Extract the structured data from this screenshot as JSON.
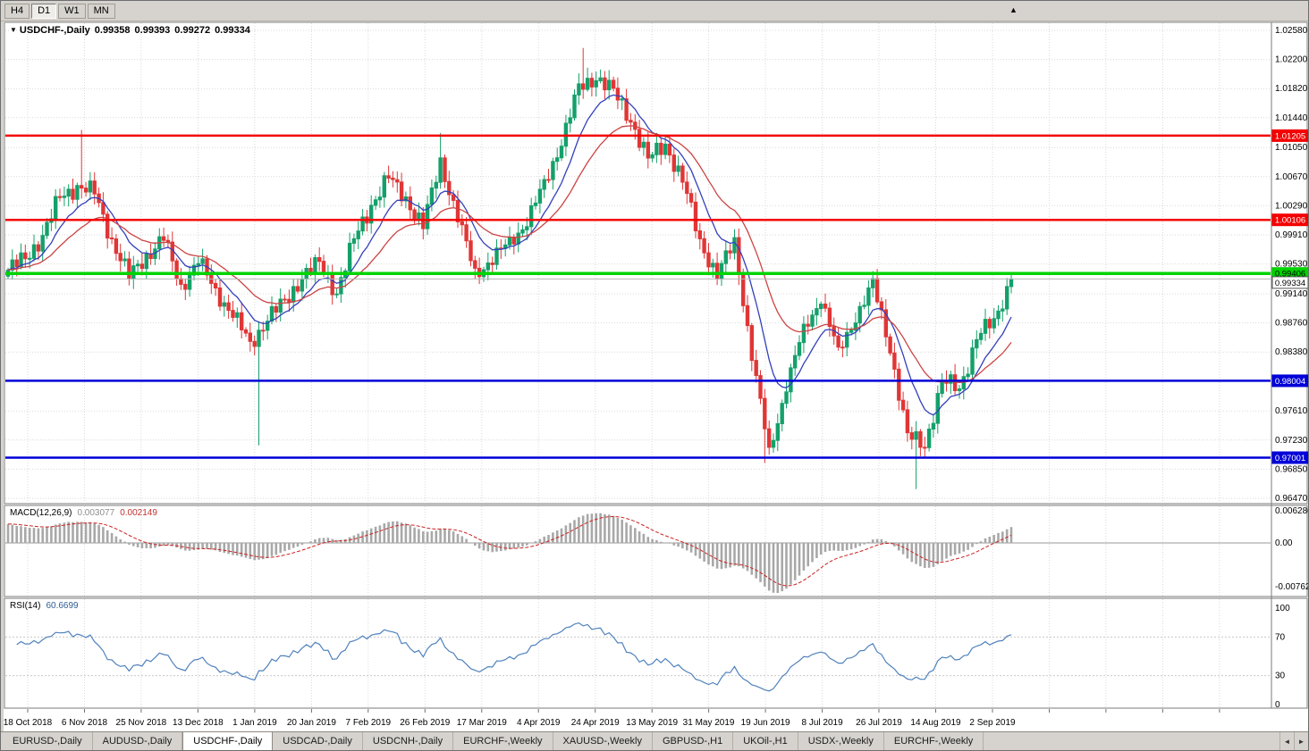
{
  "toolbar": {
    "periods": [
      {
        "label": "H4",
        "active": false
      },
      {
        "label": "D1",
        "active": true
      },
      {
        "label": "W1",
        "active": false
      },
      {
        "label": "MN",
        "active": false
      }
    ],
    "scroll_to_end_icon": "▲"
  },
  "symbol_header": {
    "marker": "▼",
    "symbol": "USDCHF-,Daily",
    "open": "0.99358",
    "high": "0.99393",
    "low": "0.99272",
    "close": "0.99334"
  },
  "price_axis": {
    "ticks": [
      "1.02580",
      "1.02200",
      "1.01820",
      "1.01440",
      "1.01050",
      "1.00670",
      "1.00290",
      "0.99910",
      "0.99530",
      "0.99140",
      "0.98760",
      "0.98380",
      "0.98000",
      "0.97610",
      "0.97230",
      "0.96850",
      "0.96470"
    ]
  },
  "hlines": [
    {
      "price": 1.01205,
      "label": "1.01205",
      "color": "#f40000",
      "lineWidth": 2.5,
      "textColor": "#ffffff"
    },
    {
      "price": 1.00106,
      "label": "1.00106",
      "color": "#f40000",
      "lineWidth": 2.5,
      "textColor": "#ffffff"
    },
    {
      "price": 0.99406,
      "label": "0.99406",
      "color": "#00d400",
      "lineWidth": 3.5,
      "textColor": "#000000"
    },
    {
      "price": 0.98004,
      "label": "0.98004",
      "color": "#0000d8",
      "lineWidth": 2.5,
      "textColor": "#ffffff"
    },
    {
      "price": 0.97001,
      "label": "0.97001",
      "color": "#0000d8",
      "lineWidth": 2.5,
      "textColor": "#ffffff"
    }
  ],
  "bid_line": {
    "price": 0.99334,
    "label": "0.99334"
  },
  "date_axis": [
    "18 Oct 2018",
    "6 Nov 2018",
    "25 Nov 2018",
    "13 Dec 2018",
    "1 Jan 2019",
    "20 Jan 2019",
    "7 Feb 2019",
    "26 Feb 2019",
    "17 Mar 2019",
    "4 Apr 2019",
    "24 Apr 2019",
    "13 May 2019",
    "31 May 2019",
    "19 Jun 2019",
    "8 Jul 2019",
    "26 Jul 2019",
    "14 Aug 2019",
    "2 Sep 2019"
  ],
  "macd_panel": {
    "title": "MACD(12,26,9)",
    "main_value": "0.003077",
    "signal_value": "0.002149",
    "axis_labels": [
      "0.006286",
      "0.00",
      "-0.00762"
    ]
  },
  "rsi_panel": {
    "title": "RSI(14)",
    "value": "60.6699",
    "axis_labels": [
      "100",
      "70",
      "30",
      "0"
    ],
    "levels": [
      70,
      30
    ]
  },
  "tabs": {
    "items": [
      "EURUSD-,Daily",
      "AUDUSD-,Daily",
      "USDCHF-,Daily",
      "USDCAD-,Daily",
      "USDCNH-,Daily",
      "EURCHF-,Weekly",
      "XAUUSD-,Weekly",
      "GBPUSD-,H1",
      "UKOil-,H1",
      "USDX-,Weekly",
      "EURCHF-,Weekly"
    ],
    "active_index": 2,
    "scroll_left_icon": "◄",
    "scroll_right_icon": "►"
  },
  "chart_data": {
    "type": "candlestick",
    "symbol": "USDCHF",
    "timeframe": "Daily",
    "x_range": [
      "18 Oct 2018",
      "6 Sep 2019"
    ],
    "y_axis_top_price": 1.0258,
    "y_axis_bottom_price": 0.9647,
    "last_ohlc": {
      "open": 0.99358,
      "high": 0.99393,
      "low": 0.99272,
      "close": 0.99334
    },
    "candles_per_anchor": 4,
    "anchor_closes": [
      0.9945,
      0.996,
      0.999,
      1.004,
      1.0055,
      1.0045,
      0.9985,
      0.9935,
      0.9965,
      0.9985,
      0.9925,
      0.9955,
      0.992,
      0.9885,
      0.985,
      0.988,
      0.9905,
      0.9935,
      0.9955,
      0.9915,
      0.9985,
      1.003,
      1.0065,
      1.004,
      1.0,
      1.009,
      1.001,
      0.9945,
      0.9955,
      0.9985,
      1.0005,
      1.006,
      1.011,
      1.0185,
      1.0195,
      1.018,
      1.014,
      1.009,
      1.011,
      1.006,
      0.9985,
      0.9935,
      0.9985,
      0.983,
      0.971,
      0.979,
      0.987,
      0.9905,
      0.984,
      0.988,
      0.993,
      0.984,
      0.973,
      0.9715,
      0.98,
      0.979,
      0.9855,
      0.988,
      0.9933
    ],
    "spikes": [
      {
        "i": 17,
        "high": 1.0128
      },
      {
        "i": 58,
        "low": 0.9716
      },
      {
        "i": 100,
        "high": 1.0124
      },
      {
        "i": 133,
        "high": 1.0235
      },
      {
        "i": 175,
        "low": 0.9693
      },
      {
        "i": 210,
        "low": 0.9659
      }
    ],
    "ma_fast_period": 10,
    "ma_slow_period": 24,
    "macd": {
      "fast": 12,
      "slow": 26,
      "signal": 9
    },
    "rsi_period": 14,
    "colors": {
      "bull": "#14a06a",
      "bear": "#e03636",
      "ma_fast": "#3340bb",
      "ma_slow": "#cc4444",
      "macd_hist": "#a8a8a8",
      "macd_signal": "#cc2222",
      "rsi": "#4f81bd",
      "grid": "#d9d9d9"
    }
  }
}
